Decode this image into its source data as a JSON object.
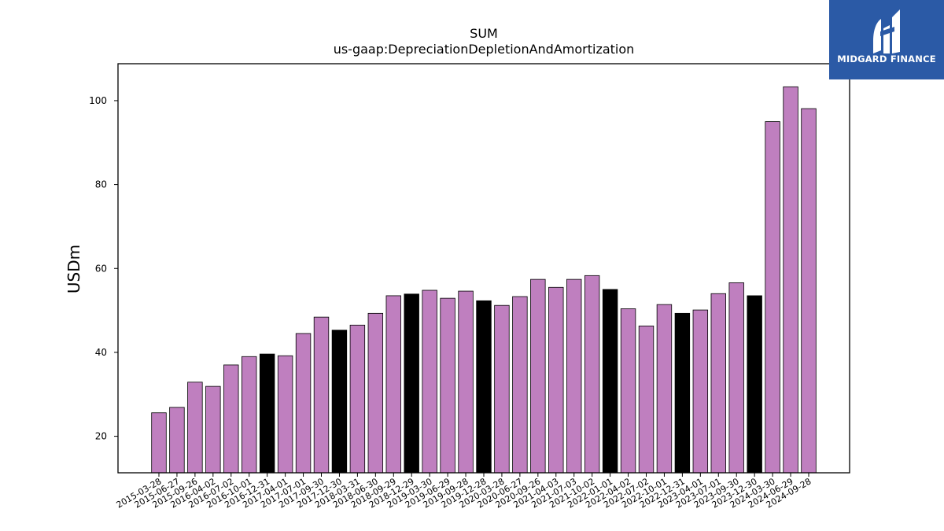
{
  "brand": {
    "name": "MIDGARD FINANCE",
    "bg_color": "#2b5aa6"
  },
  "chart_data": {
    "type": "bar",
    "title": "SUM",
    "subtitle": "us-gaap:DepreciationDepletionAndAmortization",
    "xlabel": "",
    "ylabel": "USDm",
    "ylim": [
      11.3,
      108.8
    ],
    "yticks": [
      20,
      40,
      60,
      80,
      100
    ],
    "grid": false,
    "colors": {
      "default": "#bf7fbf",
      "highlight": "#000000",
      "edge": "#000000"
    },
    "categories": [
      "2015-03-28",
      "2015-06-27",
      "2015-09-26",
      "2016-04-02",
      "2016-07-02",
      "2016-10-01",
      "2016-12-31",
      "2017-04-01",
      "2017-07-01",
      "2017-09-30",
      "2017-12-30",
      "2018-03-31",
      "2018-06-30",
      "2018-09-29",
      "2018-12-29",
      "2019-03-30",
      "2019-06-29",
      "2019-09-28",
      "2019-12-28",
      "2020-03-28",
      "2020-06-27",
      "2020-09-26",
      "2021-04-03",
      "2021-07-03",
      "2021-10-02",
      "2022-01-01",
      "2022-04-02",
      "2022-07-02",
      "2022-10-01",
      "2022-12-31",
      "2023-04-01",
      "2023-07-01",
      "2023-09-30",
      "2023-12-30",
      "2024-03-30",
      "2024-06-29",
      "2024-09-28"
    ],
    "values": [
      25.6,
      26.9,
      32.9,
      31.9,
      37.0,
      39.0,
      39.6,
      39.2,
      44.5,
      48.4,
      45.3,
      46.5,
      49.3,
      53.5,
      53.9,
      54.8,
      52.9,
      54.6,
      52.3,
      51.2,
      53.3,
      57.4,
      55.5,
      57.4,
      58.3,
      55.0,
      50.4,
      46.3,
      51.4,
      49.3,
      50.1,
      54.0,
      56.6,
      53.5,
      95.0,
      103.3,
      98.1
    ],
    "highlighted": [
      false,
      false,
      false,
      false,
      false,
      false,
      true,
      false,
      false,
      false,
      true,
      false,
      false,
      false,
      true,
      false,
      false,
      false,
      true,
      false,
      false,
      false,
      false,
      false,
      false,
      true,
      false,
      false,
      false,
      true,
      false,
      false,
      false,
      true,
      false,
      false,
      false
    ]
  }
}
